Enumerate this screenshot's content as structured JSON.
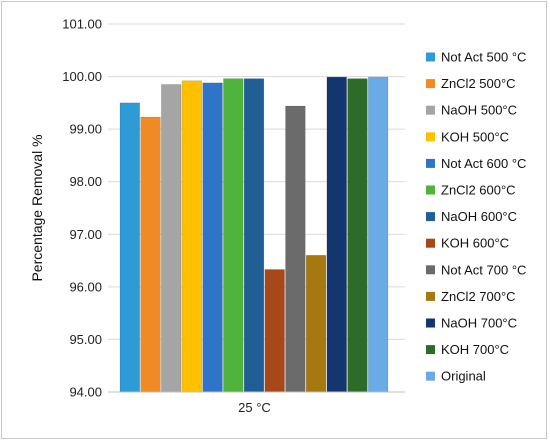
{
  "chart_data": {
    "type": "bar",
    "title": "",
    "xlabel": "",
    "ylabel": "Percentage Removal %",
    "categories": [
      "25 °C"
    ],
    "ylim": [
      94.0,
      101.0
    ],
    "yticks": [
      "94.00",
      "95.00",
      "96.00",
      "97.00",
      "98.00",
      "99.00",
      "100.00",
      "101.00"
    ],
    "grid": true,
    "legend_position": "right",
    "series": [
      {
        "name": "Not Act 500 °C",
        "values": [
          99.5
        ],
        "color": "#2e9bd6"
      },
      {
        "name": "ZnCl2 500°C",
        "values": [
          99.23
        ],
        "color": "#f08a24"
      },
      {
        "name": "NaOH  500°C",
        "values": [
          99.85
        ],
        "color": "#a5a5a5"
      },
      {
        "name": "KOH 500°C",
        "values": [
          99.92
        ],
        "color": "#ffc000"
      },
      {
        "name": "Not Act 600 °C",
        "values": [
          99.88
        ],
        "color": "#2f74c8"
      },
      {
        "name": "ZnCl2 600°C",
        "values": [
          99.96
        ],
        "color": "#4fb33c"
      },
      {
        "name": "NaOH  600°C",
        "values": [
          99.96
        ],
        "color": "#1f5f96"
      },
      {
        "name": "KOH 600°C",
        "values": [
          96.33
        ],
        "color": "#a8481a"
      },
      {
        "name": "Not Act 700 °C",
        "values": [
          99.44
        ],
        "color": "#6b6b6b"
      },
      {
        "name": "ZnCl2 700°C",
        "values": [
          96.6
        ],
        "color": "#a67810"
      },
      {
        "name": "NaOH  700°C",
        "values": [
          99.99
        ],
        "color": "#14366e"
      },
      {
        "name": "KOH 700°C",
        "values": [
          99.96
        ],
        "color": "#2c6b28"
      },
      {
        "name": "Original",
        "values": [
          99.99
        ],
        "color": "#6aabe5"
      }
    ]
  }
}
